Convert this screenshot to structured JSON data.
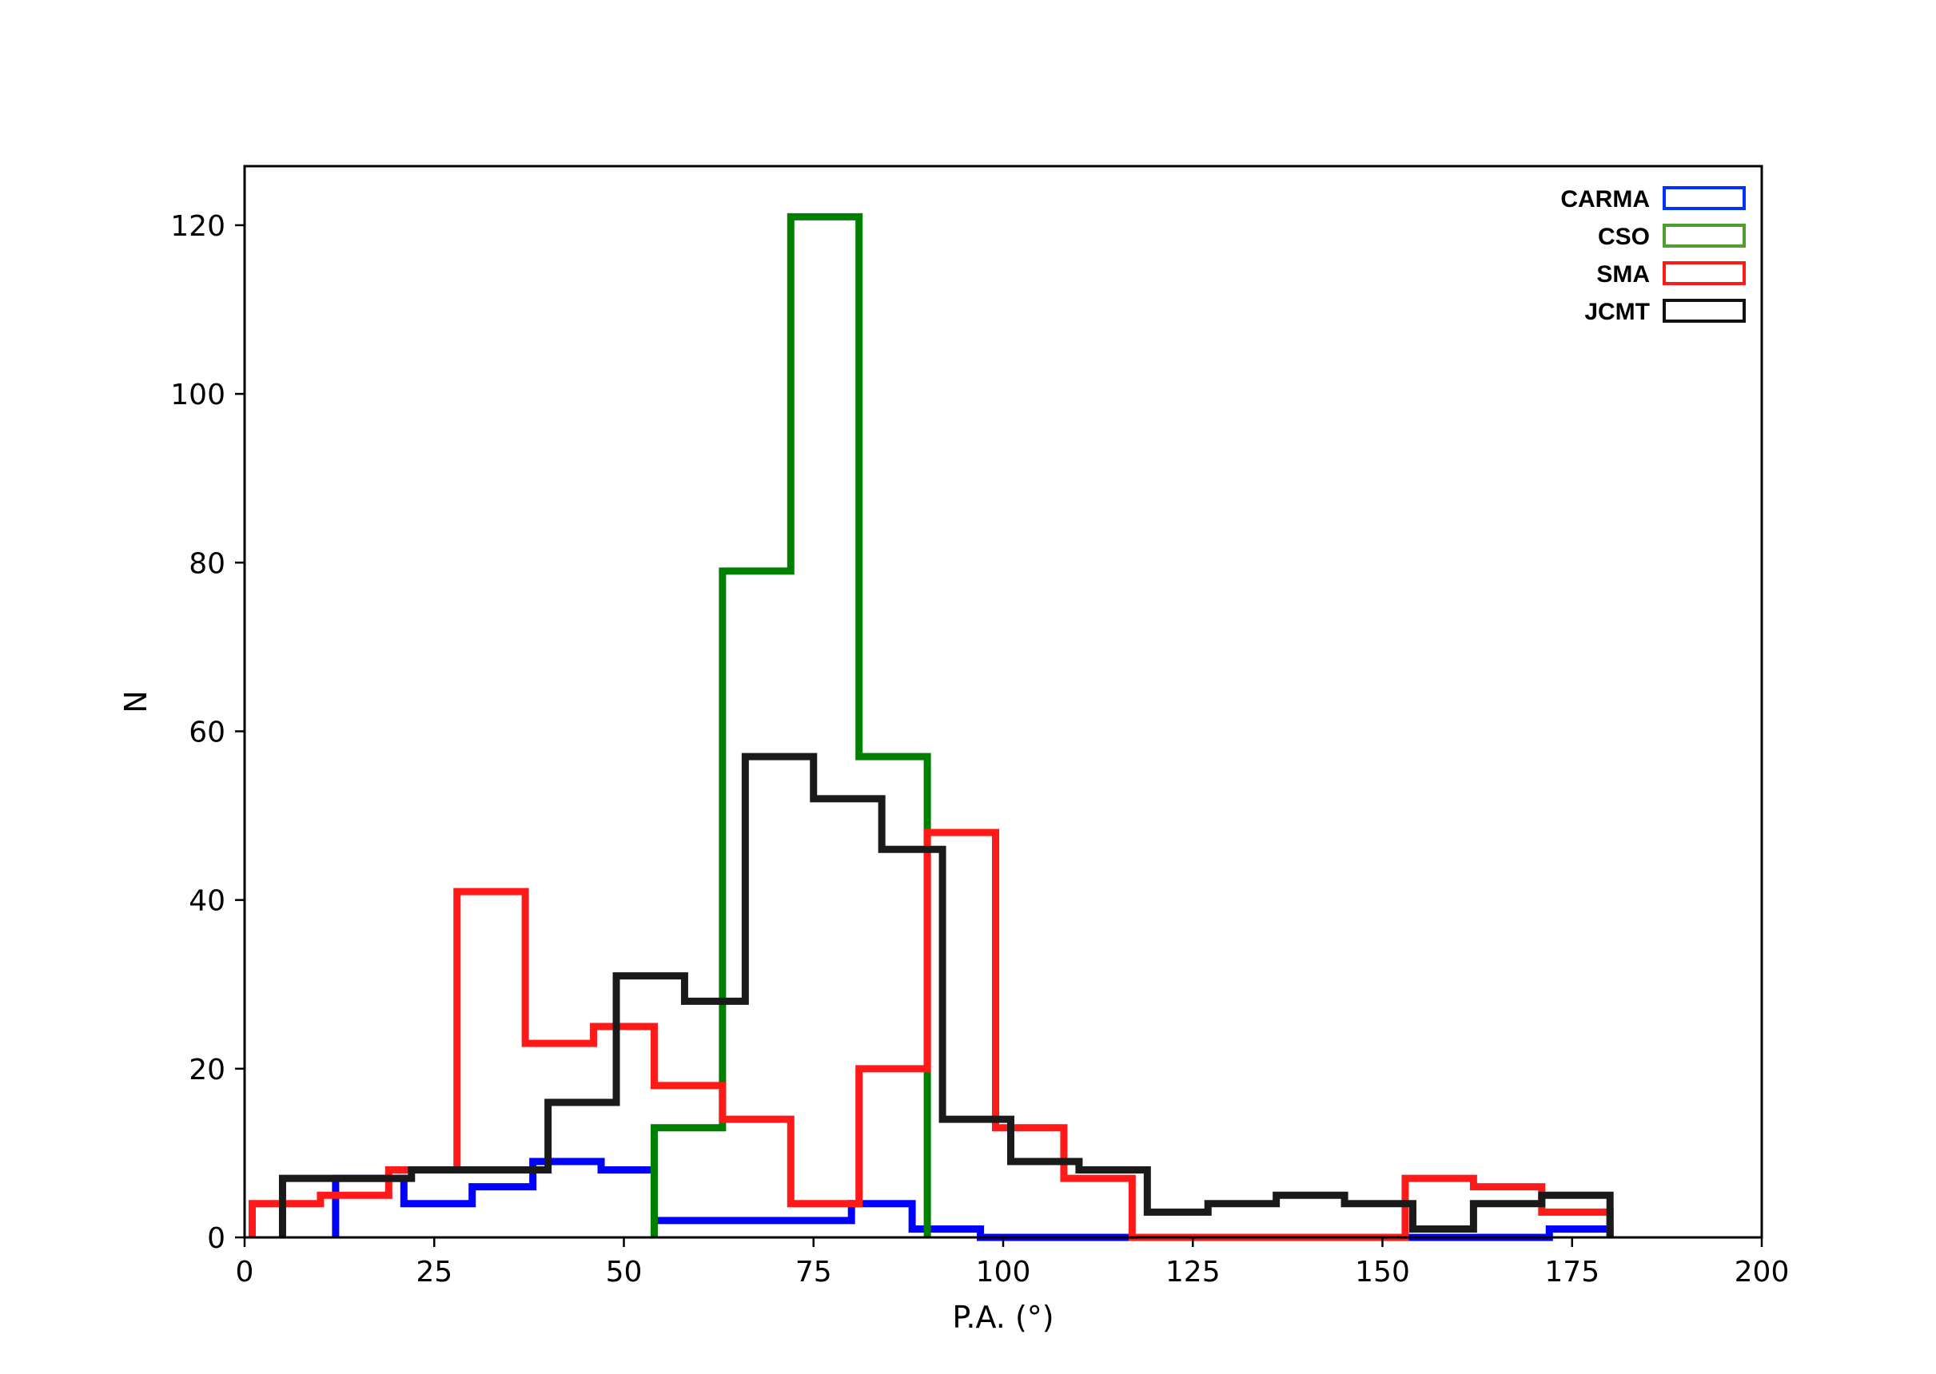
{
  "chart_data": {
    "type": "histogram",
    "title": "",
    "xlabel": "P.A. (°)",
    "ylabel": "N",
    "xlim": [
      0,
      200
    ],
    "ylim": [
      0,
      127
    ],
    "xticks": [
      0,
      25,
      50,
      75,
      100,
      125,
      150,
      175,
      200
    ],
    "yticks": [
      0,
      20,
      40,
      60,
      80,
      100,
      120
    ],
    "grid": false,
    "legend_position": "top-right",
    "series": [
      {
        "name": "CARMA",
        "color": "#0000ff",
        "bin_edges": [
          12,
          21,
          30,
          38,
          47,
          54,
          63,
          71,
          80,
          88,
          97,
          105,
          114,
          122,
          131,
          139,
          148,
          156,
          163,
          172,
          180
        ],
        "counts": [
          7,
          4,
          6,
          9,
          8,
          2,
          2,
          2,
          4,
          1,
          0,
          0,
          0,
          0,
          0,
          0,
          0,
          0,
          0,
          1
        ]
      },
      {
        "name": "CSO",
        "color": "#008000",
        "bin_edges": [
          54,
          63,
          72,
          81,
          90
        ],
        "counts": [
          13,
          79,
          121,
          57
        ]
      },
      {
        "name": "SMA",
        "color": "#ff1a1a",
        "bin_edges": [
          1,
          10,
          19,
          28,
          37,
          46,
          54,
          63,
          72,
          81,
          90,
          99,
          108,
          117,
          126,
          135,
          144,
          153,
          162,
          171,
          180
        ],
        "counts": [
          4,
          5,
          8,
          41,
          23,
          25,
          18,
          14,
          4,
          20,
          48,
          13,
          7,
          0,
          0,
          0,
          0,
          7,
          6,
          3
        ]
      },
      {
        "name": "JCMT",
        "color": "#1a1a1a",
        "bin_edges": [
          5,
          14,
          22,
          31,
          40,
          49,
          58,
          66,
          75,
          84,
          92,
          101,
          110,
          119,
          127,
          136,
          145,
          154,
          162,
          171,
          180
        ],
        "counts": [
          7,
          7,
          8,
          8,
          16,
          31,
          28,
          57,
          52,
          46,
          14,
          9,
          8,
          3,
          4,
          5,
          4,
          1,
          4,
          5
        ]
      }
    ]
  }
}
